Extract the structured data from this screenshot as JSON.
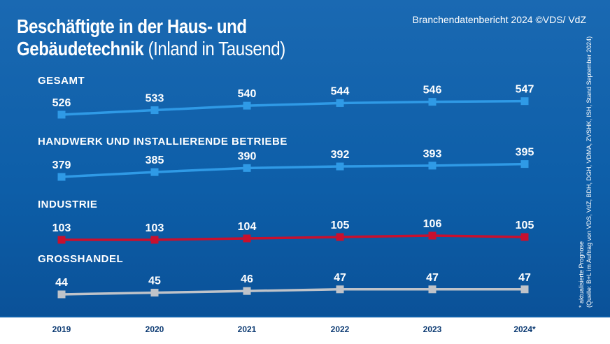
{
  "header": {
    "title_line1": "Beschäftigte in der Haus- und",
    "title_line2_bold": "Gebäudetechnik",
    "title_line2_light": "(Inland in Tausend)",
    "source": "Branchendatenbericht 2024 ©VDS/ VdZ"
  },
  "footnote": {
    "line1": "* aktualisierte Prognose",
    "line2": "(Quelle: B+L im Auftrag von VDS, VdZ, BDH, DGH, VDMA, ZVSHK, ISH, Stand September 2024)"
  },
  "chart_data": {
    "type": "line",
    "categories": [
      "2019",
      "2020",
      "2021",
      "2022",
      "2023",
      "2024*"
    ],
    "series": [
      {
        "name": "GESAMT",
        "values": [
          526,
          533,
          540,
          544,
          546,
          547
        ],
        "color": "#2f9ae6"
      },
      {
        "name": "HANDWERK UND INSTALLIERENDE BETRIEBE",
        "values": [
          379,
          385,
          390,
          392,
          393,
          395
        ],
        "color": "#2f9ae6"
      },
      {
        "name": "INDUSTRIE",
        "values": [
          103,
          103,
          104,
          105,
          106,
          105
        ],
        "color": "#c8102e"
      },
      {
        "name": "GROSSHANDEL",
        "values": [
          44,
          45,
          46,
          47,
          47,
          47
        ],
        "color": "#bfc3c9"
      }
    ]
  }
}
